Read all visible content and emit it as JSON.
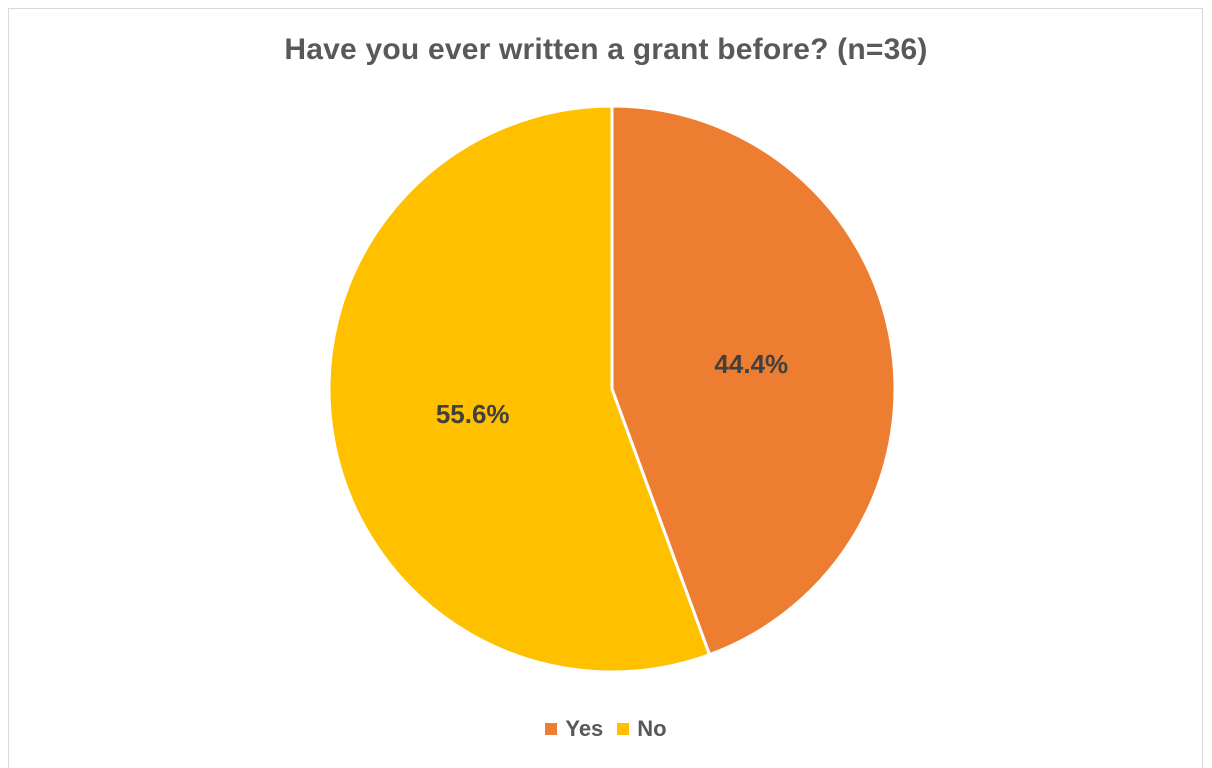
{
  "chart_data": {
    "type": "pie",
    "title": "Have you ever written a grant before? (n=36)",
    "categories": [
      "Yes",
      "No"
    ],
    "values": [
      44.4,
      55.6
    ],
    "data_labels": [
      "44.4%",
      "55.6%"
    ],
    "colors": [
      "#ed7d31",
      "#ffc000"
    ],
    "start_angle_deg": 0,
    "direction": "clockwise",
    "legend_position": "bottom"
  }
}
